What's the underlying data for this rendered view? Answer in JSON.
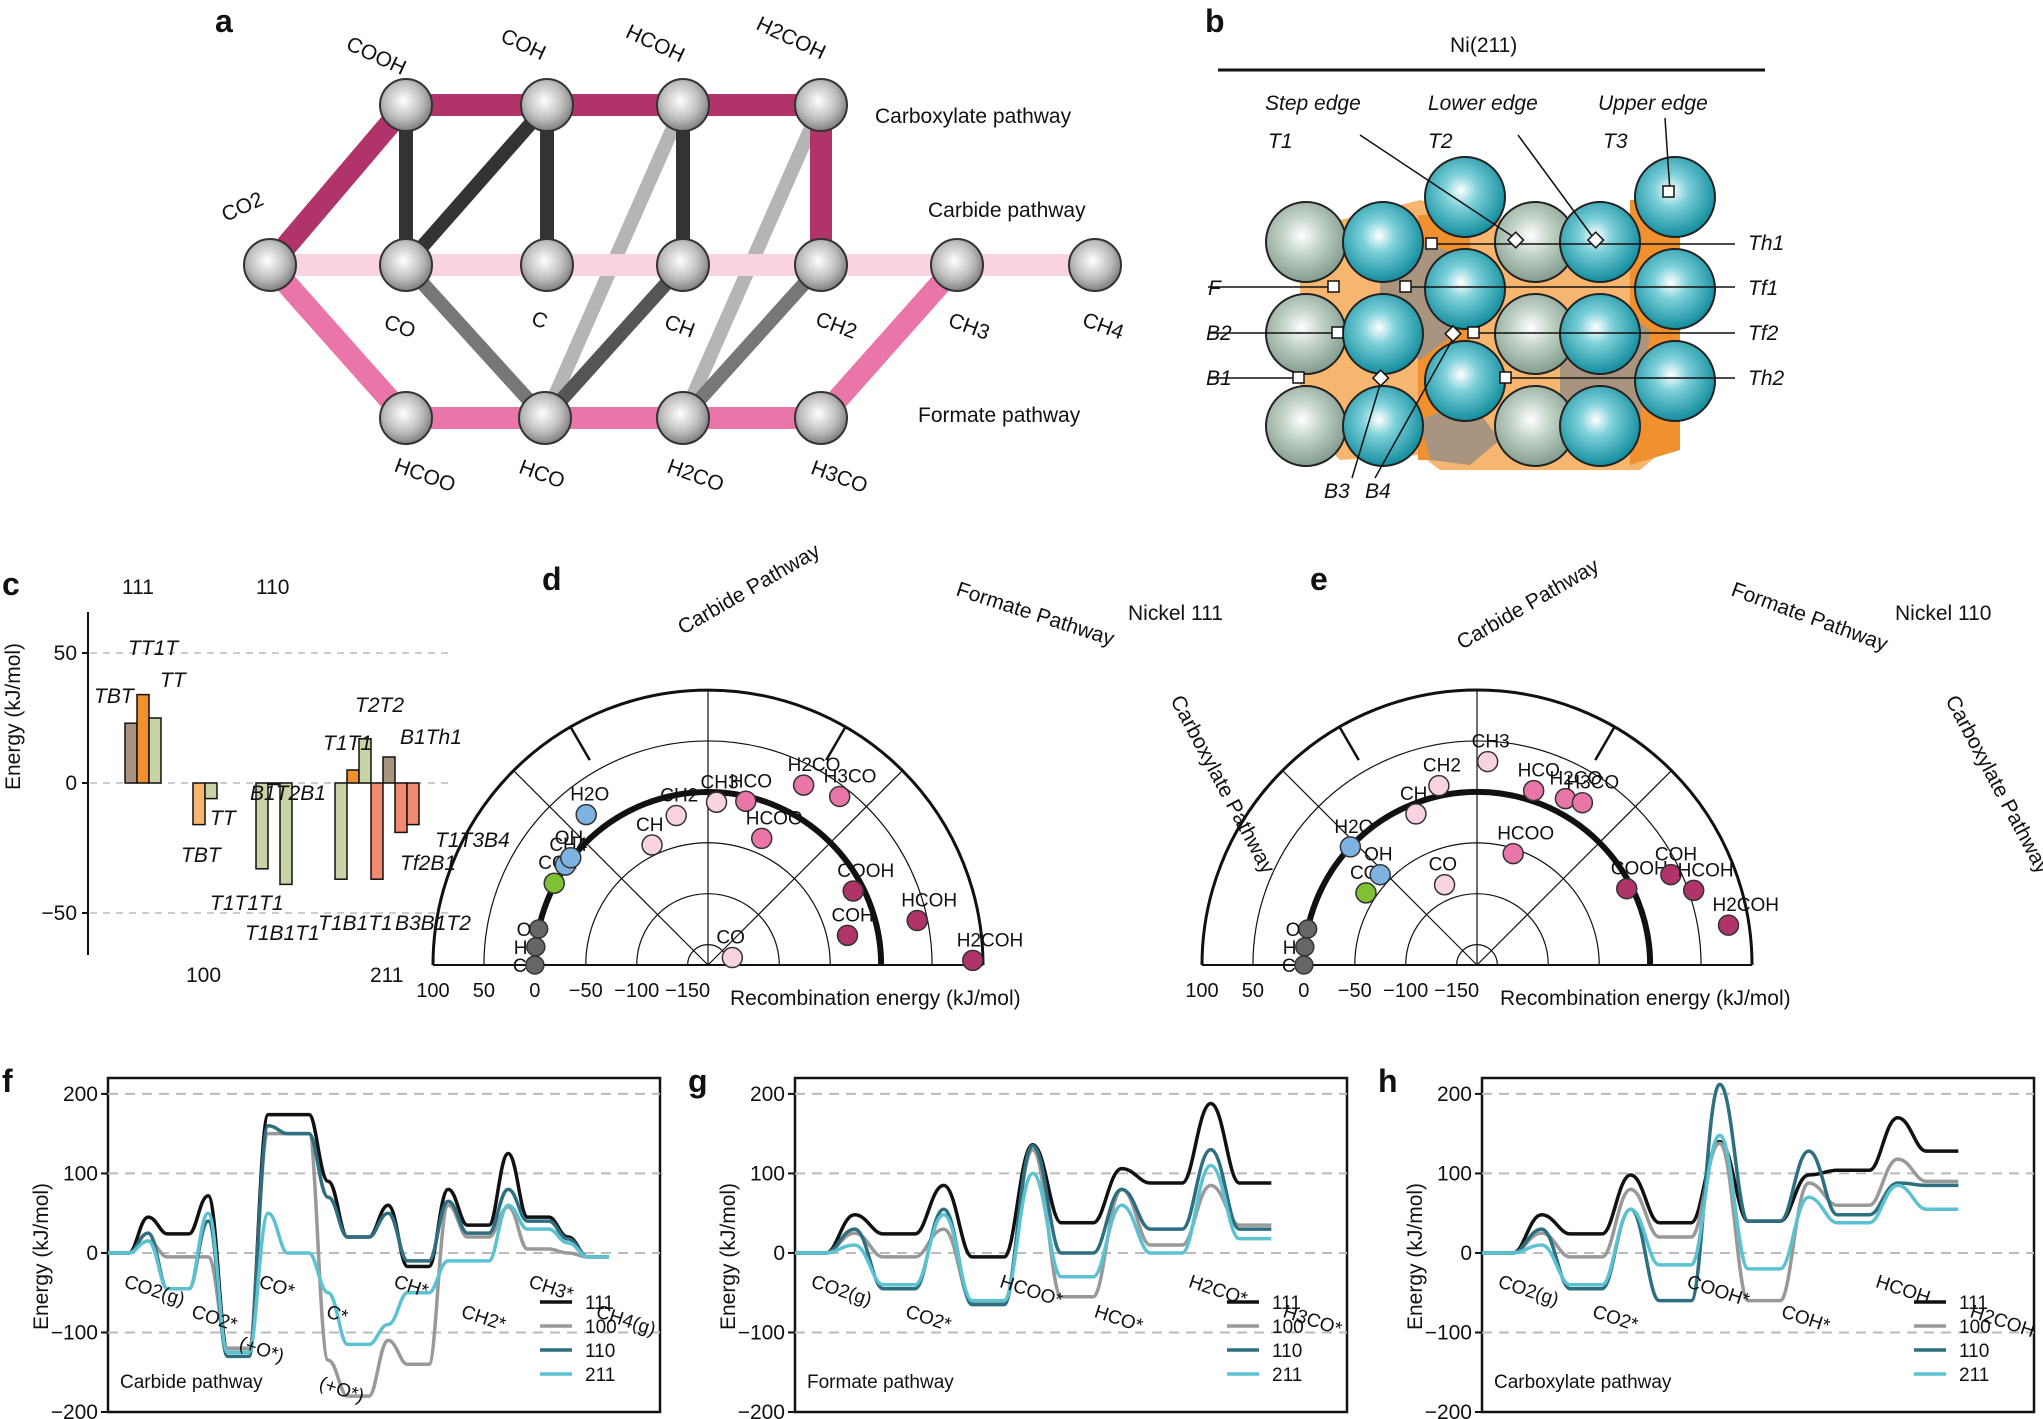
{
  "panel_labels": [
    "a",
    "b",
    "c",
    "d",
    "e",
    "f",
    "g",
    "h"
  ],
  "panel_a": {
    "pathways": [
      "Carboxylate pathway",
      "Carbide pathway",
      "Formate pathway"
    ],
    "node_labels": {
      "co2": "CO2",
      "cooh": "COOH",
      "coh_top": "COH",
      "hcoh": "HCOH",
      "h2coh": "H2COH",
      "co": "CO",
      "c": "C",
      "ch": "CH",
      "ch2": "CH2",
      "ch3": "CH3",
      "ch4": "CH4",
      "hcoo": "HCOO",
      "hco": "HCO",
      "h2co": "H2CO",
      "h3co": "H3CO"
    },
    "colors": {
      "carboxylate": "#b0336a",
      "carbide": "#f9d3e2",
      "formate": "#ea75a8"
    }
  },
  "panel_b": {
    "title": "Ni(211)",
    "site_headers": [
      "Step edge",
      "Lower edge",
      "Upper edge"
    ],
    "sites_left": [
      "T1",
      "T2",
      "T3",
      "F",
      "B2",
      "B1",
      "B3",
      "B4"
    ],
    "sites_right": [
      "Th1",
      "Tf1",
      "Tf2",
      "Th2"
    ]
  },
  "chart_data": [
    {
      "panel": "c",
      "type": "bar",
      "ylabel": "Energy (kJ/mol)",
      "ylim": [
        -50,
        50
      ],
      "yticks": [
        50,
        0,
        -50
      ],
      "facet_labels": [
        "111",
        "110",
        "100",
        "211"
      ],
      "bars": [
        {
          "facet": "111",
          "site": "TBT",
          "value": 23
        },
        {
          "facet": "111",
          "site": "TT1T",
          "value": 34
        },
        {
          "facet": "111",
          "site": "TT",
          "value": 25
        },
        {
          "facet": "100",
          "site": "TBT",
          "value": -16
        },
        {
          "facet": "100",
          "site": "TT",
          "value": -6
        },
        {
          "facet": "110",
          "site": "T1T1T1",
          "value": -33
        },
        {
          "facet": "110",
          "site": "B1T2B1",
          "value": 0
        },
        {
          "facet": "110",
          "site": "T1B1T1",
          "value": -39
        },
        {
          "facet": "211",
          "site": "T1B1T1",
          "value": -37
        },
        {
          "facet": "211",
          "site": "T1T1",
          "value": 5
        },
        {
          "facet": "211",
          "site": "T2T2",
          "value": 17
        },
        {
          "facet": "211",
          "site": "B3B1T2",
          "value": -37
        },
        {
          "facet": "211",
          "site": "B1Th1",
          "value": 10
        },
        {
          "facet": "211",
          "site": "Tf2B1",
          "value": -19
        },
        {
          "facet": "211",
          "site": "T1T3B4",
          "value": -16
        }
      ],
      "bar_label_text": [
        "111",
        "110",
        "100",
        "211",
        "TBT",
        "TT1T",
        "TT",
        "TT",
        "TBT",
        "B1T2B1",
        "T1T1T1",
        "T1B1T1",
        "T1T1",
        "T2T2",
        "B1Th1",
        "T1B1T1",
        "Tf2B1",
        "T1T3B4",
        "B3B1T2"
      ]
    },
    {
      "panel": "d",
      "type": "scatter",
      "title": "Nickel 111",
      "xlabel": "Recombination energy (kJ/mol)",
      "ticks": [
        "100",
        "50",
        "0",
        "−50",
        "−100",
        "−150"
      ],
      "sectors": [
        "Carbide Pathway",
        "Formate Pathway",
        "Carboxylate Pathway"
      ],
      "points": [
        {
          "label": "C",
          "energy": 0,
          "angle": -3,
          "group": "atom"
        },
        {
          "label": "H",
          "energy": 0,
          "angle": 3,
          "group": "atom"
        },
        {
          "label": "O",
          "energy": 0,
          "angle": 9,
          "group": "atom"
        },
        {
          "label": "CO2",
          "energy": 1,
          "angle": 25,
          "group": "co2"
        },
        {
          "label": "CH4",
          "energy": 1,
          "angle": 32,
          "group": "h2o"
        },
        {
          "label": "OH",
          "energy": 1,
          "angle": 35,
          "group": "h2o"
        },
        {
          "label": "H2O",
          "energy": 20,
          "angle": 48,
          "group": "h2o"
        },
        {
          "label": "CH",
          "energy": -40,
          "angle": 62,
          "group": "carbide"
        },
        {
          "label": "CH2",
          "energy": -20,
          "angle": 75,
          "group": "carbide"
        },
        {
          "label": "CH3",
          "energy": -10,
          "angle": 90,
          "group": "carbide"
        },
        {
          "label": "CO",
          "energy": -145,
          "angle": 160,
          "group": "carbide"
        },
        {
          "label": "HCO",
          "energy": -5,
          "angle": 100,
          "group": "formate"
        },
        {
          "label": "HCOO",
          "energy": -35,
          "angle": 110,
          "group": "formate"
        },
        {
          "label": "H2CO",
          "energy": 30,
          "angle": 115,
          "group": "formate"
        },
        {
          "label": "H3CO",
          "energy": 40,
          "angle": 125,
          "group": "formate"
        },
        {
          "label": "COOH",
          "energy": -10,
          "angle": 150,
          "group": "carboxylate"
        },
        {
          "label": "COH",
          "energy": -30,
          "angle": 165,
          "group": "carboxylate"
        },
        {
          "label": "HCOH",
          "energy": 40,
          "angle": 165,
          "group": "carboxylate"
        },
        {
          "label": "H2COH",
          "energy": 90,
          "angle": 176,
          "group": "carboxylate"
        }
      ]
    },
    {
      "panel": "e",
      "type": "scatter",
      "title": "Nickel 110",
      "xlabel": "Recombination energy (kJ/mol)",
      "ticks": [
        "100",
        "50",
        "0",
        "−50",
        "−100",
        "−150"
      ],
      "sectors": [
        "Carbide Pathway",
        "Formate Pathway",
        "Carboxylate Pathway"
      ],
      "points": [
        {
          "label": "C",
          "energy": 0,
          "angle": -3,
          "group": "atom"
        },
        {
          "label": "H",
          "energy": 0,
          "angle": 3,
          "group": "atom"
        },
        {
          "label": "O",
          "energy": 0,
          "angle": 9,
          "group": "atom"
        },
        {
          "label": "CO2",
          "energy": -40,
          "angle": 30,
          "group": "co2"
        },
        {
          "label": "OH",
          "energy": -40,
          "angle": 40,
          "group": "h2o"
        },
        {
          "label": "H2O",
          "energy": 0,
          "angle": 40,
          "group": "h2o"
        },
        {
          "label": "CH",
          "energy": -10,
          "angle": 65,
          "group": "carbide"
        },
        {
          "label": "CH2",
          "energy": 10,
          "angle": 75,
          "group": "carbide"
        },
        {
          "label": "CH3",
          "energy": 30,
          "angle": 90,
          "group": "carbide"
        },
        {
          "label": "CO",
          "energy": -85,
          "angle": 65,
          "group": "carbide"
        },
        {
          "label": "HCOO",
          "energy": -55,
          "angle": 105,
          "group": "formate"
        },
        {
          "label": "HCO",
          "energy": 10,
          "angle": 105,
          "group": "formate"
        },
        {
          "label": "H2CO",
          "energy": 15,
          "angle": 115,
          "group": "formate"
        },
        {
          "label": "H3CO",
          "energy": 20,
          "angle": 120,
          "group": "formate"
        },
        {
          "label": "COOH",
          "energy": -5,
          "angle": 150,
          "group": "carboxylate"
        },
        {
          "label": "COH",
          "energy": 40,
          "angle": 152,
          "group": "carboxylate"
        },
        {
          "label": "HCOH",
          "energy": 55,
          "angle": 158,
          "group": "carboxylate"
        },
        {
          "label": "H2COH",
          "energy": 80,
          "angle": 168,
          "group": "carboxylate"
        }
      ]
    },
    {
      "panel": "f",
      "type": "line",
      "caption": "Carbide pathway",
      "ylabel": "Energy (kJ/mol)",
      "ylim": [
        -200,
        220
      ],
      "yticks": [
        200,
        100,
        0,
        -100,
        -200
      ],
      "x": [
        0,
        1,
        2,
        3,
        4,
        5,
        6,
        7,
        8,
        9,
        10,
        11
      ],
      "state_labels": [
        "CO2(g)",
        "CO2*",
        "CO*",
        "C*",
        "CH*",
        "CH2*",
        "CH3*",
        "CH4(g)"
      ],
      "side_labels": [
        "(+O*)",
        "(+O*)"
      ],
      "series": [
        {
          "name": "111",
          "color": "#111111",
          "levels": [
            0,
            24,
            -120,
            174,
            20,
            -17,
            35,
            45,
            -5
          ],
          "ts": [
            45,
            72,
            174,
            90,
            60,
            80,
            125
          ]
        },
        {
          "name": "100",
          "color": "#999999",
          "levels": [
            0,
            -5,
            -120,
            150,
            -180,
            -140,
            20,
            5,
            -5
          ],
          "ts": [
            15,
            -5,
            150,
            -135,
            -110,
            60,
            58
          ]
        },
        {
          "name": "110",
          "color": "#2e6f7f",
          "levels": [
            0,
            -45,
            -130,
            150,
            20,
            -10,
            25,
            40,
            -5
          ],
          "ts": [
            25,
            40,
            160,
            70,
            50,
            65,
            80
          ]
        },
        {
          "name": "211",
          "color": "#5cc2d2",
          "levels": [
            0,
            -45,
            -125,
            0,
            -115,
            -50,
            -10,
            30,
            -5
          ],
          "ts": [
            15,
            50,
            50,
            -50,
            -90,
            -10,
            60
          ]
        }
      ]
    },
    {
      "panel": "g",
      "type": "line",
      "caption": "Formate pathway",
      "ylabel": "Energy (kJ/mol)",
      "ylim": [
        -200,
        220
      ],
      "yticks": [
        200,
        100,
        0,
        -100,
        -200
      ],
      "state_labels": [
        "CO2(g)",
        "CO2*",
        "HCOO*",
        "HCO*",
        "H2CO*",
        "H3CO*"
      ],
      "series": [
        {
          "name": "111",
          "color": "#111111",
          "levels": [
            0,
            24,
            -5,
            38,
            88,
            88
          ],
          "ts": [
            48,
            85,
            136,
            106,
            188
          ]
        },
        {
          "name": "100",
          "color": "#999999",
          "levels": [
            0,
            -5,
            -62,
            -55,
            10,
            35
          ],
          "ts": [
            25,
            30,
            130,
            80,
            85
          ]
        },
        {
          "name": "110",
          "color": "#2e6f7f",
          "levels": [
            0,
            -45,
            -65,
            0,
            30,
            30
          ],
          "ts": [
            30,
            55,
            135,
            80,
            130
          ]
        },
        {
          "name": "211",
          "color": "#5cc2d2",
          "levels": [
            0,
            -40,
            -60,
            -30,
            0,
            18
          ],
          "ts": [
            10,
            48,
            100,
            60,
            110
          ]
        }
      ]
    },
    {
      "panel": "h",
      "type": "line",
      "caption": "Carboxylate pathway",
      "ylabel": "Energy (kJ/mol)",
      "ylim": [
        -200,
        220
      ],
      "yticks": [
        200,
        100,
        0,
        -100,
        -200
      ],
      "state_labels": [
        "CO2(g)",
        "CO2*",
        "COOH*",
        "COH*",
        "HCOH",
        "H2COH"
      ],
      "series": [
        {
          "name": "111",
          "color": "#111111",
          "levels": [
            0,
            24,
            38,
            40,
            104,
            128
          ],
          "ts": [
            48,
            98,
            140,
            98,
            170
          ]
        },
        {
          "name": "100",
          "color": "#999999",
          "levels": [
            0,
            -5,
            20,
            -60,
            60,
            90
          ],
          "ts": [
            25,
            80,
            138,
            88,
            118
          ]
        },
        {
          "name": "110",
          "color": "#2e6f7f",
          "levels": [
            0,
            -45,
            -60,
            40,
            48,
            85
          ],
          "ts": [
            30,
            55,
            212,
            128,
            88
          ]
        },
        {
          "name": "211",
          "color": "#5cc2d2",
          "levels": [
            0,
            -40,
            -15,
            -20,
            38,
            55
          ],
          "ts": [
            10,
            55,
            148,
            70,
            85
          ]
        }
      ]
    }
  ],
  "legend_names": [
    "111",
    "100",
    "110",
    "211"
  ],
  "colors": {
    "c111": "#111111",
    "c100": "#999999",
    "c110": "#2e6f7f",
    "c211": "#5cc2d2",
    "carboxylate": "#b0336a",
    "carbide": "#f9d3e2",
    "formate": "#ea75a8",
    "h2o": "#7db3e0",
    "co2": "#7ec234",
    "atom": "#666666",
    "ni_teal": "#1ea4b4",
    "ni_grey": "#a9c0b2",
    "orange": "#f4a45c",
    "taupe": "#a99480"
  }
}
